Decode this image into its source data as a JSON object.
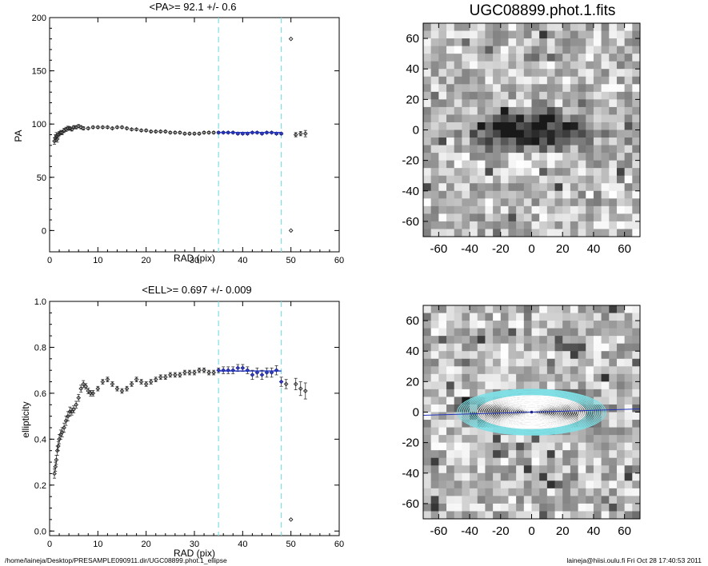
{
  "footer": {
    "path": "/home/laineja/Desktop/PRESAMPLE090911.dir/UGC08899.phot.1_ellipse",
    "stamp": "laineja@hiisi.oulu.fi  Fri Oct 28 17:40:53 2011"
  },
  "chart_data": [
    {
      "type": "scatter",
      "title": "<PA>=  92.1 +/-   0.6",
      "xlabel": "RAD (pix)",
      "ylabel": "PA",
      "xlim": [
        0,
        60
      ],
      "ylim": [
        -20,
        200
      ],
      "xticks": [
        "0",
        "10",
        "20",
        "30",
        "40",
        "50",
        "60"
      ],
      "yticks": [
        "0",
        "50",
        "100",
        "150",
        "200"
      ],
      "xtick_values": [
        0,
        10,
        20,
        30,
        40,
        50,
        60
      ],
      "ytick_values": [
        0,
        50,
        100,
        150,
        200
      ],
      "vlines": [
        35,
        48
      ],
      "vline_color": "#7fe0e6",
      "x": [
        1.0,
        1.2,
        1.4,
        1.6,
        1.8,
        2.0,
        2.3,
        2.6,
        3.0,
        3.4,
        3.8,
        4.2,
        4.6,
        5.0,
        5.5,
        6.0,
        6.5,
        7.0,
        8.0,
        9.0,
        10.0,
        11.0,
        12.0,
        13.0,
        14.0,
        15.0,
        16.0,
        17.0,
        18.0,
        19.0,
        20.0,
        21.0,
        22.0,
        23.0,
        24.0,
        25.0,
        26.0,
        27.0,
        28.0,
        29.0,
        30.0,
        31.0,
        32.0,
        33.0,
        34.0,
        35.0,
        36.0,
        37.0,
        38.0,
        39.0,
        40.0,
        41.0,
        42.0,
        43.0,
        44.0,
        45.0,
        46.0,
        47.0,
        48.0,
        50.0,
        50.0,
        51.0,
        52.0,
        53.0
      ],
      "y": [
        84,
        87,
        89,
        86,
        90,
        91,
        92,
        92,
        94,
        95,
        96,
        96,
        95,
        97,
        97,
        98,
        97,
        96,
        96,
        97,
        97,
        97,
        97,
        96,
        97,
        97,
        96,
        95,
        95,
        94,
        94,
        93,
        93,
        93,
        93,
        92,
        92,
        92,
        91,
        91,
        91,
        91,
        92,
        92,
        92,
        92,
        92,
        92,
        92,
        91,
        91,
        91,
        92,
        92,
        91,
        92,
        92,
        91,
        91,
        180,
        0,
        90,
        91,
        91
      ],
      "err": [
        3,
        3,
        3,
        3,
        2,
        2,
        2,
        2,
        2,
        2,
        2,
        1.5,
        1.5,
        1.5,
        1.5,
        1.5,
        1.5,
        1.5,
        1,
        1,
        1,
        1,
        1,
        1,
        1,
        1,
        1,
        1,
        1,
        1,
        1,
        1,
        1,
        1,
        1,
        1,
        1,
        1,
        1,
        1,
        1,
        1,
        1,
        1,
        1,
        1,
        1,
        1,
        1,
        1,
        1,
        1,
        1,
        1,
        1,
        1,
        1,
        1,
        1,
        0,
        0,
        2,
        2,
        3
      ],
      "fit": {
        "x": [
          35,
          48
        ],
        "y": [
          92.1,
          92.1
        ],
        "color": "#2233bb"
      }
    },
    {
      "type": "scatter",
      "title": "<ELL>= 0.697 +/-  0.009",
      "xlabel": "RAD (pix)",
      "ylabel": "ellipticity",
      "xlim": [
        0,
        60
      ],
      "ylim": [
        -0.02,
        1.0
      ],
      "xticks": [
        "0",
        "10",
        "20",
        "30",
        "40",
        "50",
        "60"
      ],
      "yticks": [
        "0.0",
        "0.2",
        "0.4",
        "0.6",
        "0.8",
        "1.0"
      ],
      "xtick_values": [
        0,
        10,
        20,
        30,
        40,
        50,
        60
      ],
      "ytick_values": [
        0,
        0.2,
        0.4,
        0.6,
        0.8,
        1.0
      ],
      "vlines": [
        35,
        48
      ],
      "vline_color": "#7fe0e6",
      "x": [
        1.0,
        1.2,
        1.4,
        1.6,
        1.8,
        2.0,
        2.3,
        2.6,
        3.0,
        3.4,
        3.8,
        4.2,
        4.6,
        5.0,
        5.5,
        6.0,
        6.5,
        7.0,
        7.5,
        8.0,
        8.5,
        9.0,
        10.0,
        11.0,
        12.0,
        13.0,
        14.0,
        15.0,
        16.0,
        17.0,
        18.0,
        19.0,
        20.0,
        21.0,
        22.0,
        23.0,
        24.0,
        25.0,
        26.0,
        27.0,
        28.0,
        29.0,
        30.0,
        31.0,
        32.0,
        33.0,
        34.0,
        35.0,
        36.0,
        37.0,
        38.0,
        39.0,
        40.0,
        41.0,
        42.0,
        43.0,
        44.0,
        45.0,
        46.0,
        47.0,
        48.0,
        49.0,
        50.0,
        51.0,
        52.0,
        53.0
      ],
      "y": [
        0.25,
        0.28,
        0.31,
        0.35,
        0.37,
        0.4,
        0.42,
        0.43,
        0.45,
        0.48,
        0.5,
        0.52,
        0.52,
        0.53,
        0.55,
        0.58,
        0.62,
        0.64,
        0.63,
        0.61,
        0.6,
        0.6,
        0.62,
        0.65,
        0.66,
        0.64,
        0.62,
        0.61,
        0.62,
        0.64,
        0.66,
        0.65,
        0.64,
        0.65,
        0.66,
        0.67,
        0.67,
        0.68,
        0.68,
        0.68,
        0.69,
        0.69,
        0.69,
        0.7,
        0.7,
        0.69,
        0.69,
        0.7,
        0.7,
        0.7,
        0.7,
        0.71,
        0.71,
        0.7,
        0.68,
        0.69,
        0.68,
        0.69,
        0.69,
        0.7,
        0.65,
        0.64,
        0.05,
        0.64,
        0.62,
        0.61
      ],
      "err": [
        0.02,
        0.02,
        0.02,
        0.02,
        0.02,
        0.02,
        0.02,
        0.02,
        0.02,
        0.02,
        0.02,
        0.02,
        0.015,
        0.015,
        0.015,
        0.015,
        0.015,
        0.015,
        0.012,
        0.012,
        0.012,
        0.012,
        0.01,
        0.01,
        0.01,
        0.01,
        0.01,
        0.01,
        0.01,
        0.01,
        0.01,
        0.01,
        0.01,
        0.01,
        0.01,
        0.01,
        0.01,
        0.01,
        0.01,
        0.01,
        0.01,
        0.01,
        0.01,
        0.01,
        0.01,
        0.01,
        0.01,
        0.01,
        0.015,
        0.015,
        0.015,
        0.015,
        0.015,
        0.015,
        0.02,
        0.02,
        0.02,
        0.02,
        0.02,
        0.02,
        0.02,
        0.02,
        0.0,
        0.025,
        0.03,
        0.035
      ],
      "fit": {
        "x": [
          35,
          48
        ],
        "y": [
          0.697,
          0.697
        ],
        "color": "#2233bb"
      }
    },
    {
      "type": "heatmap",
      "title": "UGC08899.phot.1.fits",
      "xlabel": "",
      "ylabel": "",
      "xlim": [
        -70,
        70
      ],
      "ylim": [
        -70,
        70
      ],
      "xticks": [
        "-60",
        "-40",
        "-20",
        "0",
        "20",
        "40",
        "60"
      ],
      "yticks": [
        "-60",
        "-40",
        "-20",
        "0",
        "20",
        "40",
        "60"
      ],
      "tick_values": [
        -60,
        -40,
        -20,
        0,
        20,
        40,
        60
      ],
      "grid_cells": 28,
      "galaxy": {
        "center": [
          0,
          0
        ],
        "semi_major": 42,
        "axis_ratio": 0.31,
        "pa_deg": 92.1
      }
    },
    {
      "type": "heatmap",
      "title": "",
      "xlabel": "",
      "ylabel": "",
      "xlim": [
        -70,
        70
      ],
      "ylim": [
        -70,
        70
      ],
      "xticks": [
        "-60",
        "-40",
        "-20",
        "0",
        "20",
        "40",
        "60"
      ],
      "yticks": [
        "-60",
        "-40",
        "-20",
        "0",
        "20",
        "40",
        "60"
      ],
      "tick_values": [
        -60,
        -40,
        -20,
        0,
        20,
        40,
        60
      ],
      "grid_cells": 28,
      "ellipses": {
        "inner_sma": 2,
        "outer_sma": 48,
        "count": 36,
        "axis_ratio": 0.31,
        "fit_range": [
          35,
          48
        ],
        "line_color": "#ffffff",
        "fit_color": "#7fe0e6"
      },
      "major_axis_line": {
        "color": "#2233bb"
      }
    }
  ]
}
